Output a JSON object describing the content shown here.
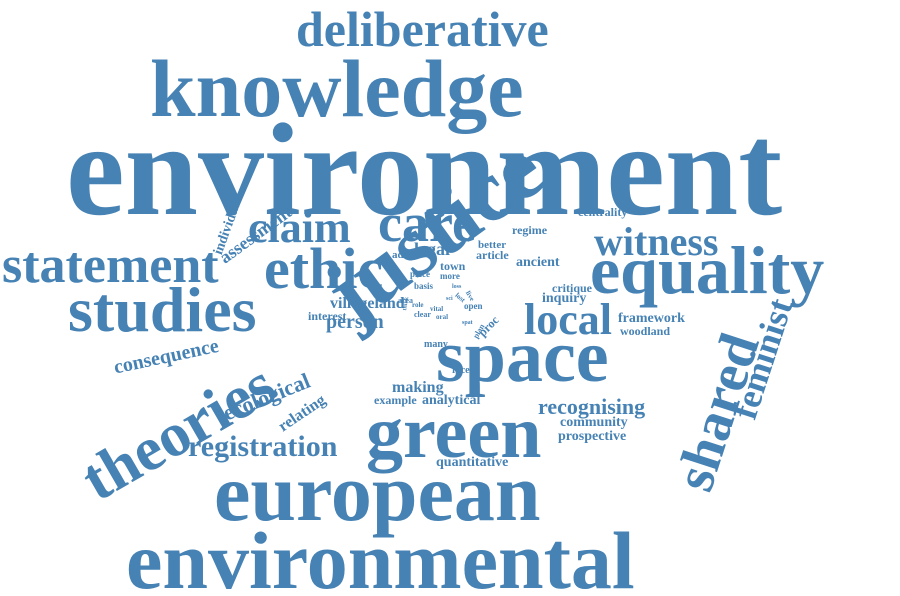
{
  "color": "#4682b4",
  "words": {
    "deliberative": "deliberative",
    "knowledge": "knowledge",
    "environment": "environment",
    "care": "care",
    "claim": "claim",
    "ethic": "ethic",
    "justice": "justice",
    "witness": "witness",
    "equality": "equality",
    "statement": "statement",
    "studies": "studies",
    "space": "space",
    "local": "local",
    "shared": "shared",
    "feminist": "feminist",
    "theories": "theories",
    "green": "green",
    "registration": "registration",
    "european": "european",
    "environmental": "environmental",
    "individual": "individual",
    "assessment": "assessment",
    "consequence": "consequence",
    "ecological": "ecological",
    "relating": "relating",
    "person": "person",
    "villageland": "villageland",
    "interest": "interest",
    "legal": "legal",
    "adopt": "adopt",
    "town": "town",
    "better": "better",
    "article": "article",
    "regime": "regime",
    "ancient": "ancient",
    "centrality": "centrality",
    "critique": "critique",
    "inquiry": "inquiry",
    "framework": "framework",
    "woodland": "woodland",
    "recognising": "recognising",
    "community": "community",
    "prospective": "prospective",
    "quantitative": "quantitative",
    "making": "making",
    "example": "example",
    "analytical": "analytical",
    "recent": "recent",
    "many": "many",
    "place": "place",
    "more": "more",
    "basis": "basis",
    "area": "area",
    "role": "role",
    "clear": "clear",
    "oral": "oral",
    "vital": "vital",
    "open": "open",
    "proc": "proc",
    "plan": "plan",
    "lost": "lost",
    "live": "live",
    "loss": "loss",
    "think": "think",
    "spat": "spat",
    "sci": "sci"
  }
}
